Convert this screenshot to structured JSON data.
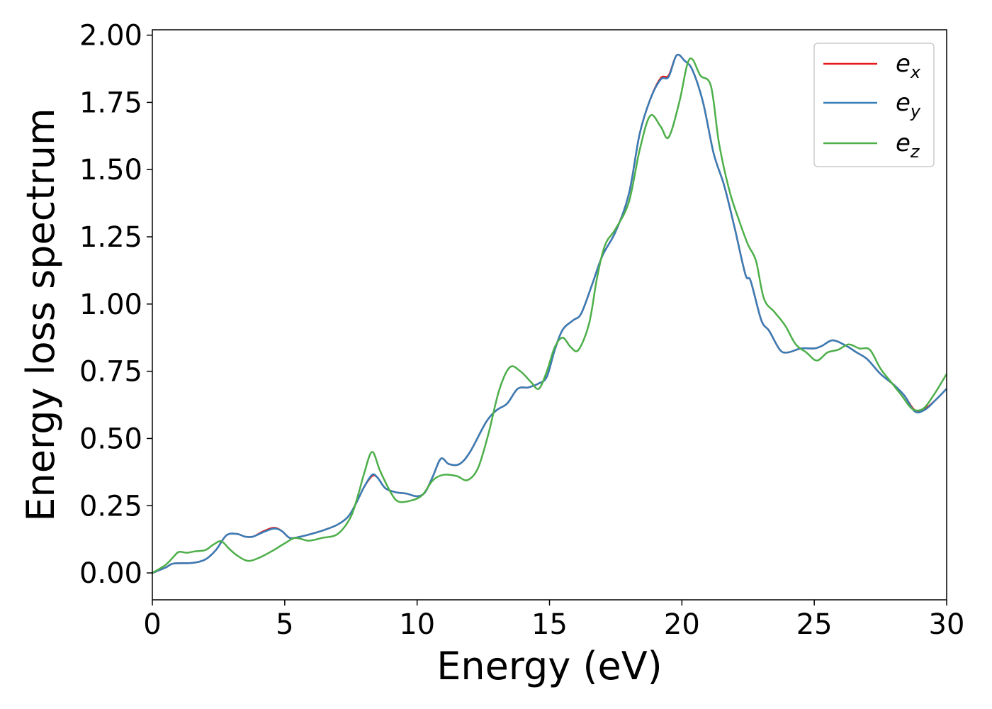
{
  "chart_data": {
    "type": "line",
    "xlabel": "Energy (eV)",
    "ylabel": "Energy loss spectrum",
    "xlim": [
      0,
      30
    ],
    "ylim": [
      -0.1,
      2.02
    ],
    "xticks": [
      0,
      5,
      10,
      15,
      20,
      25,
      30
    ],
    "xtick_labels": [
      "0",
      "5",
      "10",
      "15",
      "20",
      "25",
      "30"
    ],
    "yticks": [
      0,
      0.25,
      0.5,
      0.75,
      1.0,
      1.25,
      1.5,
      1.75,
      2.0
    ],
    "ytick_labels": [
      "0.00",
      "0.25",
      "0.50",
      "0.75",
      "1.00",
      "1.25",
      "1.50",
      "1.75",
      "2.00"
    ],
    "grid": false,
    "legend_position": "top-right",
    "series": [
      {
        "name": "e",
        "subscript": "x",
        "color": "#e41a1c",
        "points": [
          [
            0,
            0
          ],
          [
            0.5,
            0.02
          ],
          [
            0.8,
            0.035
          ],
          [
            1.5,
            0.037
          ],
          [
            2,
            0.05
          ],
          [
            2.4,
            0.085
          ],
          [
            2.8,
            0.14
          ],
          [
            3.2,
            0.145
          ],
          [
            3.5,
            0.135
          ],
          [
            3.8,
            0.135
          ],
          [
            4.2,
            0.155
          ],
          [
            4.6,
            0.168
          ],
          [
            4.9,
            0.155
          ],
          [
            5.2,
            0.13
          ],
          [
            5.6,
            0.135
          ],
          [
            6,
            0.145
          ],
          [
            6.5,
            0.16
          ],
          [
            7,
            0.18
          ],
          [
            7.4,
            0.21
          ],
          [
            7.7,
            0.26
          ],
          [
            8,
            0.32
          ],
          [
            8.3,
            0.36
          ],
          [
            8.5,
            0.355
          ],
          [
            8.8,
            0.315
          ],
          [
            9.2,
            0.3
          ],
          [
            9.6,
            0.295
          ],
          [
            10,
            0.285
          ],
          [
            10.3,
            0.3
          ],
          [
            10.6,
            0.36
          ],
          [
            10.9,
            0.425
          ],
          [
            11.2,
            0.405
          ],
          [
            11.6,
            0.405
          ],
          [
            12,
            0.45
          ],
          [
            12.6,
            0.56
          ],
          [
            13,
            0.605
          ],
          [
            13.4,
            0.63
          ],
          [
            13.8,
            0.685
          ],
          [
            14.2,
            0.69
          ],
          [
            14.6,
            0.705
          ],
          [
            14.9,
            0.73
          ],
          [
            15.2,
            0.83
          ],
          [
            15.5,
            0.905
          ],
          [
            15.9,
            0.94
          ],
          [
            16.2,
            0.965
          ],
          [
            16.6,
            1.07
          ],
          [
            17,
            1.18
          ],
          [
            17.5,
            1.27
          ],
          [
            18,
            1.41
          ],
          [
            18.4,
            1.63
          ],
          [
            18.8,
            1.76
          ],
          [
            19.2,
            1.84
          ],
          [
            19.5,
            1.85
          ],
          [
            19.8,
            1.925
          ],
          [
            20.1,
            1.905
          ],
          [
            20.4,
            1.87
          ],
          [
            20.8,
            1.75
          ],
          [
            21.2,
            1.56
          ],
          [
            21.6,
            1.44
          ],
          [
            22,
            1.28
          ],
          [
            22.4,
            1.11
          ],
          [
            22.6,
            1.085
          ],
          [
            23,
            0.94
          ],
          [
            23.3,
            0.9
          ],
          [
            23.7,
            0.83
          ],
          [
            24,
            0.82
          ],
          [
            24.5,
            0.835
          ],
          [
            25,
            0.835
          ],
          [
            25.3,
            0.845
          ],
          [
            25.7,
            0.865
          ],
          [
            26.2,
            0.845
          ],
          [
            26.6,
            0.82
          ],
          [
            27,
            0.795
          ],
          [
            27.5,
            0.74
          ],
          [
            28,
            0.7
          ],
          [
            28.4,
            0.66
          ],
          [
            28.8,
            0.605
          ],
          [
            29.2,
            0.612
          ],
          [
            29.6,
            0.645
          ],
          [
            30,
            0.685
          ]
        ]
      },
      {
        "name": "e",
        "subscript": "y",
        "color": "#377eb8",
        "points": [
          [
            0,
            0
          ],
          [
            0.5,
            0.02
          ],
          [
            0.8,
            0.035
          ],
          [
            1.5,
            0.037
          ],
          [
            2,
            0.05
          ],
          [
            2.4,
            0.085
          ],
          [
            2.8,
            0.14
          ],
          [
            3.2,
            0.145
          ],
          [
            3.5,
            0.135
          ],
          [
            3.8,
            0.135
          ],
          [
            4.2,
            0.152
          ],
          [
            4.6,
            0.165
          ],
          [
            4.9,
            0.155
          ],
          [
            5.2,
            0.13
          ],
          [
            5.6,
            0.135
          ],
          [
            6,
            0.145
          ],
          [
            6.5,
            0.16
          ],
          [
            7,
            0.18
          ],
          [
            7.4,
            0.21
          ],
          [
            7.7,
            0.26
          ],
          [
            8,
            0.32
          ],
          [
            8.3,
            0.365
          ],
          [
            8.5,
            0.355
          ],
          [
            8.8,
            0.315
          ],
          [
            9.2,
            0.3
          ],
          [
            9.6,
            0.295
          ],
          [
            10,
            0.285
          ],
          [
            10.3,
            0.3
          ],
          [
            10.6,
            0.36
          ],
          [
            10.9,
            0.425
          ],
          [
            11.2,
            0.405
          ],
          [
            11.6,
            0.405
          ],
          [
            12,
            0.45
          ],
          [
            12.6,
            0.56
          ],
          [
            13,
            0.605
          ],
          [
            13.4,
            0.63
          ],
          [
            13.8,
            0.685
          ],
          [
            14.2,
            0.69
          ],
          [
            14.6,
            0.705
          ],
          [
            14.9,
            0.73
          ],
          [
            15.2,
            0.83
          ],
          [
            15.5,
            0.905
          ],
          [
            15.9,
            0.94
          ],
          [
            16.2,
            0.965
          ],
          [
            16.6,
            1.07
          ],
          [
            17,
            1.18
          ],
          [
            17.5,
            1.27
          ],
          [
            18,
            1.41
          ],
          [
            18.4,
            1.63
          ],
          [
            18.8,
            1.76
          ],
          [
            19.2,
            1.835
          ],
          [
            19.5,
            1.845
          ],
          [
            19.8,
            1.925
          ],
          [
            20.1,
            1.905
          ],
          [
            20.4,
            1.87
          ],
          [
            20.8,
            1.75
          ],
          [
            21.2,
            1.56
          ],
          [
            21.6,
            1.44
          ],
          [
            22,
            1.28
          ],
          [
            22.4,
            1.11
          ],
          [
            22.6,
            1.085
          ],
          [
            23,
            0.94
          ],
          [
            23.3,
            0.9
          ],
          [
            23.7,
            0.83
          ],
          [
            24,
            0.82
          ],
          [
            24.5,
            0.835
          ],
          [
            25,
            0.835
          ],
          [
            25.3,
            0.845
          ],
          [
            25.7,
            0.865
          ],
          [
            26.2,
            0.845
          ],
          [
            26.6,
            0.82
          ],
          [
            27,
            0.795
          ],
          [
            27.5,
            0.74
          ],
          [
            28,
            0.7
          ],
          [
            28.4,
            0.66
          ],
          [
            28.8,
            0.6
          ],
          [
            29.2,
            0.608
          ],
          [
            29.6,
            0.645
          ],
          [
            30,
            0.685
          ]
        ]
      },
      {
        "name": "e",
        "subscript": "z",
        "color": "#4daf4a",
        "points": [
          [
            0,
            0
          ],
          [
            0.5,
            0.03
          ],
          [
            0.8,
            0.06
          ],
          [
            1,
            0.078
          ],
          [
            1.3,
            0.075
          ],
          [
            1.6,
            0.08
          ],
          [
            2,
            0.085
          ],
          [
            2.3,
            0.105
          ],
          [
            2.6,
            0.118
          ],
          [
            2.9,
            0.09
          ],
          [
            3.2,
            0.065
          ],
          [
            3.6,
            0.045
          ],
          [
            4,
            0.055
          ],
          [
            4.5,
            0.08
          ],
          [
            5,
            0.11
          ],
          [
            5.4,
            0.13
          ],
          [
            5.9,
            0.12
          ],
          [
            6.4,
            0.13
          ],
          [
            7,
            0.145
          ],
          [
            7.5,
            0.21
          ],
          [
            7.8,
            0.3
          ],
          [
            8,
            0.37
          ],
          [
            8.3,
            0.45
          ],
          [
            8.6,
            0.38
          ],
          [
            9,
            0.3
          ],
          [
            9.3,
            0.265
          ],
          [
            9.8,
            0.27
          ],
          [
            10.2,
            0.29
          ],
          [
            10.6,
            0.345
          ],
          [
            11,
            0.365
          ],
          [
            11.5,
            0.36
          ],
          [
            11.9,
            0.345
          ],
          [
            12.3,
            0.39
          ],
          [
            12.7,
            0.52
          ],
          [
            13.1,
            0.68
          ],
          [
            13.5,
            0.765
          ],
          [
            13.9,
            0.75
          ],
          [
            14.3,
            0.71
          ],
          [
            14.6,
            0.685
          ],
          [
            14.9,
            0.75
          ],
          [
            15.2,
            0.84
          ],
          [
            15.5,
            0.875
          ],
          [
            15.8,
            0.84
          ],
          [
            16.1,
            0.83
          ],
          [
            16.5,
            0.93
          ],
          [
            16.8,
            1.1
          ],
          [
            17.1,
            1.22
          ],
          [
            17.5,
            1.28
          ],
          [
            18,
            1.38
          ],
          [
            18.4,
            1.57
          ],
          [
            18.8,
            1.7
          ],
          [
            19.2,
            1.66
          ],
          [
            19.5,
            1.62
          ],
          [
            19.9,
            1.75
          ],
          [
            20.2,
            1.89
          ],
          [
            20.4,
            1.91
          ],
          [
            20.7,
            1.85
          ],
          [
            21.1,
            1.81
          ],
          [
            21.4,
            1.6
          ],
          [
            21.8,
            1.42
          ],
          [
            22.2,
            1.3
          ],
          [
            22.5,
            1.22
          ],
          [
            22.8,
            1.16
          ],
          [
            23.1,
            1.02
          ],
          [
            23.5,
            0.97
          ],
          [
            23.9,
            0.92
          ],
          [
            24.3,
            0.85
          ],
          [
            24.7,
            0.82
          ],
          [
            25.1,
            0.79
          ],
          [
            25.5,
            0.82
          ],
          [
            25.9,
            0.83
          ],
          [
            26.3,
            0.85
          ],
          [
            26.7,
            0.835
          ],
          [
            27.1,
            0.83
          ],
          [
            27.5,
            0.76
          ],
          [
            27.9,
            0.71
          ],
          [
            28.3,
            0.66
          ],
          [
            28.7,
            0.61
          ],
          [
            29.1,
            0.61
          ],
          [
            29.5,
            0.66
          ],
          [
            30,
            0.74
          ]
        ]
      }
    ]
  }
}
